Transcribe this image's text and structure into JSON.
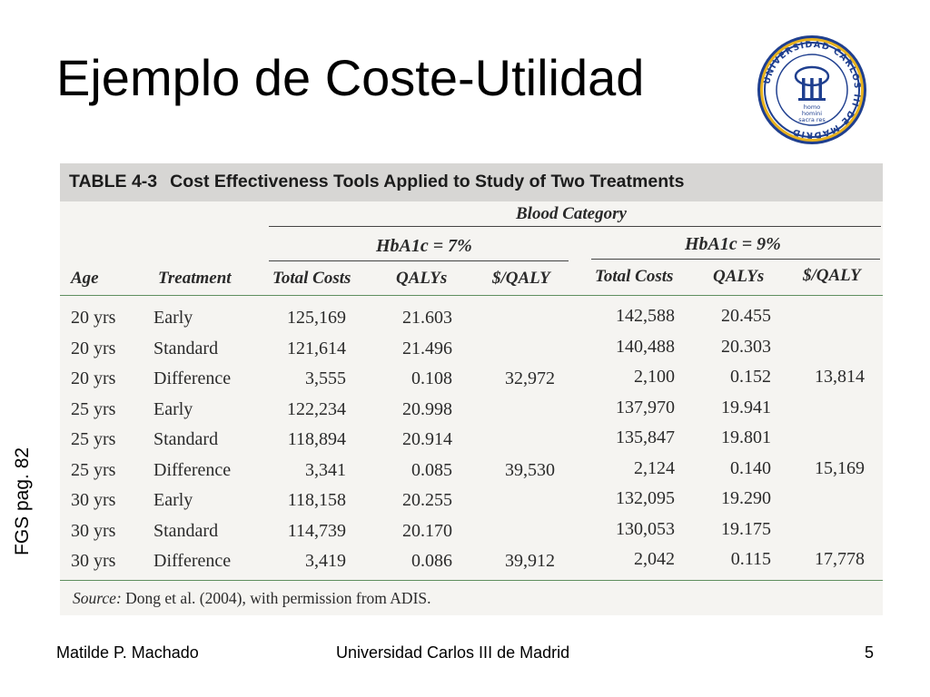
{
  "slide": {
    "title": "Ejemplo de Coste-Utilidad",
    "side_note": "FGS pag. 82",
    "logo_text": "UNIVERSIDAD CARLOS III DE MADRID",
    "logo_motto": "homo homini sacra res"
  },
  "table": {
    "number": "TABLE 4-3",
    "title": "Cost Effectiveness Tools Applied to Study of Two Treatments",
    "blood_category": "Blood Category",
    "group1_label": "HbA1c = 7%",
    "group2_label": "HbA1c = 9%",
    "columns": [
      "Age",
      "Treatment",
      "Total Costs",
      "QALYs",
      "$/QALY",
      "Total Costs",
      "QALYs",
      "$/QALY"
    ],
    "rows": [
      [
        "20 yrs",
        "Early",
        "125,169",
        "21.603",
        "",
        "142,588",
        "20.455",
        ""
      ],
      [
        "20 yrs",
        "Standard",
        "121,614",
        "21.496",
        "",
        "140,488",
        "20.303",
        ""
      ],
      [
        "20 yrs",
        "Difference",
        "3,555",
        "0.108",
        "32,972",
        "2,100",
        "0.152",
        "13,814"
      ],
      [
        "25 yrs",
        "Early",
        "122,234",
        "20.998",
        "",
        "137,970",
        "19.941",
        ""
      ],
      [
        "25 yrs",
        "Standard",
        "118,894",
        "20.914",
        "",
        "135,847",
        "19.801",
        ""
      ],
      [
        "25 yrs",
        "Difference",
        "3,341",
        "0.085",
        "39,530",
        "2,124",
        "0.140",
        "15,169"
      ],
      [
        "30 yrs",
        "Early",
        "118,158",
        "20.255",
        "",
        "132,095",
        "19.290",
        ""
      ],
      [
        "30 yrs",
        "Standard",
        "114,739",
        "20.170",
        "",
        "130,053",
        "19.175",
        ""
      ],
      [
        "30 yrs",
        "Difference",
        "3,419",
        "0.086",
        "39,912",
        "2,042",
        "0.115",
        "17,778"
      ]
    ],
    "source_label": "Source:",
    "source_text": " Dong et al. (2004), with permission from ADIS."
  },
  "footer": {
    "author": "Matilde P. Machado",
    "institution": "Universidad Carlos III de Madrid",
    "page": "5"
  }
}
